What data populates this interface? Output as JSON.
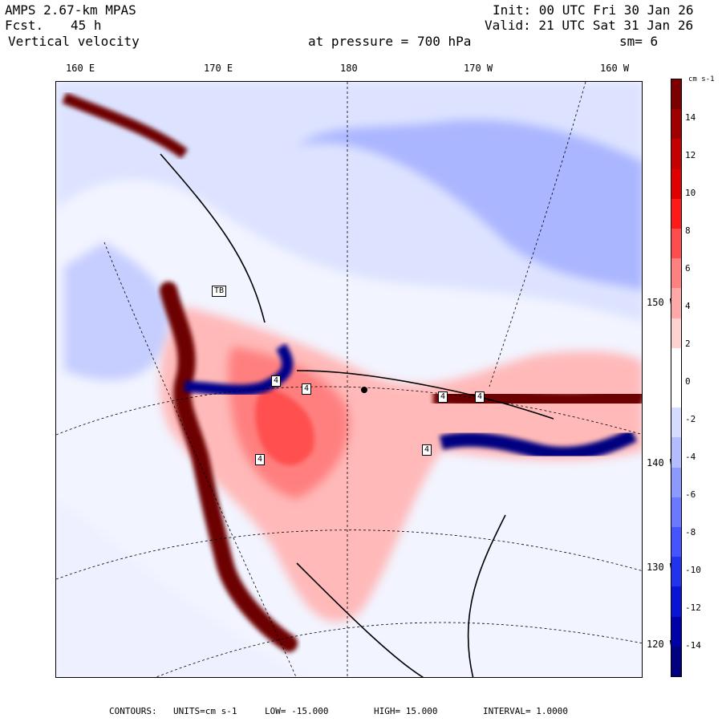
{
  "header": {
    "model": "AMPS 2.67-km MPAS",
    "forecast_label": "Fcst.",
    "forecast_hours": "45 h",
    "field": "Vertical velocity",
    "init": "Init: 00 UTC Fri 30 Jan 26",
    "valid": "Valid: 21 UTC Sat 31 Jan 26",
    "level_label": "at pressure =",
    "level_value": "700 hPa",
    "smoothing": "sm= 6"
  },
  "longitude_labels": [
    "160 E",
    "170 E",
    "180",
    "170 W",
    "160 W"
  ],
  "latitude_labels": [
    "150 W",
    "140 W",
    "130 W",
    "120 W"
  ],
  "colorbar": {
    "unit": "cm s-1",
    "ticks": [
      "14",
      "12",
      "10",
      "8",
      "6",
      "4",
      "2",
      "0",
      "-2",
      "-4",
      "-6",
      "-8",
      "-10",
      "-12",
      "-14"
    ],
    "colors": [
      "#7d0000",
      "#a00000",
      "#c40000",
      "#e00000",
      "#ff1a1a",
      "#ff4d4d",
      "#ff8080",
      "#ffa8a8",
      "#ffd2d2",
      "#ffffff",
      "#ffffff",
      "#d6dcff",
      "#b2bcff",
      "#8c99ff",
      "#6a79ff",
      "#4455ff",
      "#2233ee",
      "#0a14d6",
      "#0000a8",
      "#000080"
    ]
  },
  "station_labels": [
    "TB",
    "4",
    "4",
    "4",
    "4",
    "4",
    "4"
  ],
  "footer": {
    "contours_label": "CONTOURS:",
    "units": "UNITS=cm s-1",
    "low": "LOW= -15.000",
    "high": "HIGH= 15.000",
    "interval": "INTERVAL= 1.0000"
  }
}
